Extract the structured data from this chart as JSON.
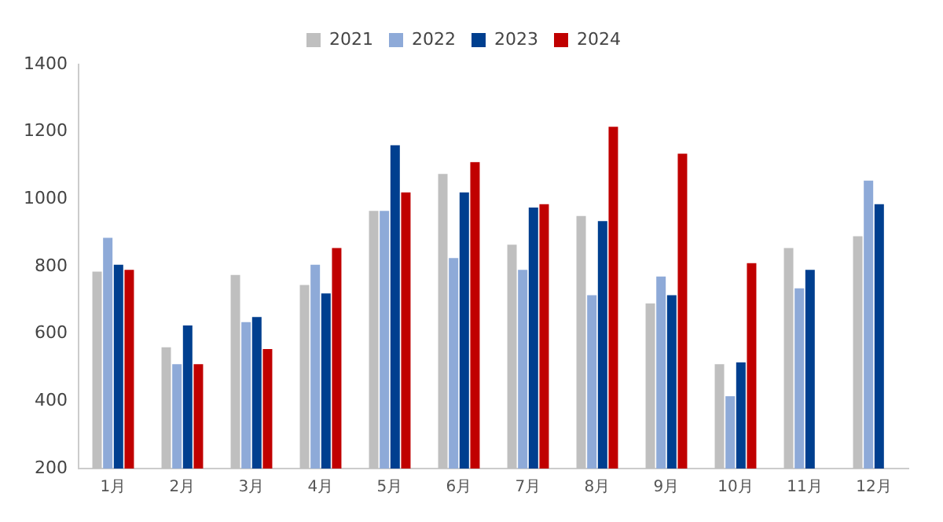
{
  "chart_data": {
    "type": "bar",
    "categories": [
      "1月",
      "2月",
      "3月",
      "4月",
      "5月",
      "6月",
      "7月",
      "8月",
      "9月",
      "10月",
      "11月",
      "12月"
    ],
    "series": [
      {
        "name": "2021",
        "color": "#bfbfbf",
        "values": [
          785,
          560,
          775,
          745,
          965,
          1075,
          865,
          950,
          690,
          510,
          855,
          890
        ]
      },
      {
        "name": "2022",
        "color": "#8eaad8",
        "values": [
          885,
          510,
          635,
          805,
          965,
          825,
          790,
          715,
          770,
          415,
          735,
          1055
        ]
      },
      {
        "name": "2023",
        "color": "#003f8f",
        "values": [
          805,
          625,
          650,
          720,
          1160,
          1020,
          975,
          935,
          715,
          515,
          790,
          985
        ]
      },
      {
        "name": "2024",
        "color": "#c00000",
        "values": [
          790,
          510,
          555,
          855,
          1020,
          1110,
          985,
          1215,
          1135,
          810,
          null,
          null
        ]
      }
    ],
    "ylim": [
      200,
      1400
    ],
    "yticks": [
      200,
      400,
      600,
      800,
      1000,
      1200,
      1400
    ],
    "grid": false,
    "legend": "top"
  }
}
